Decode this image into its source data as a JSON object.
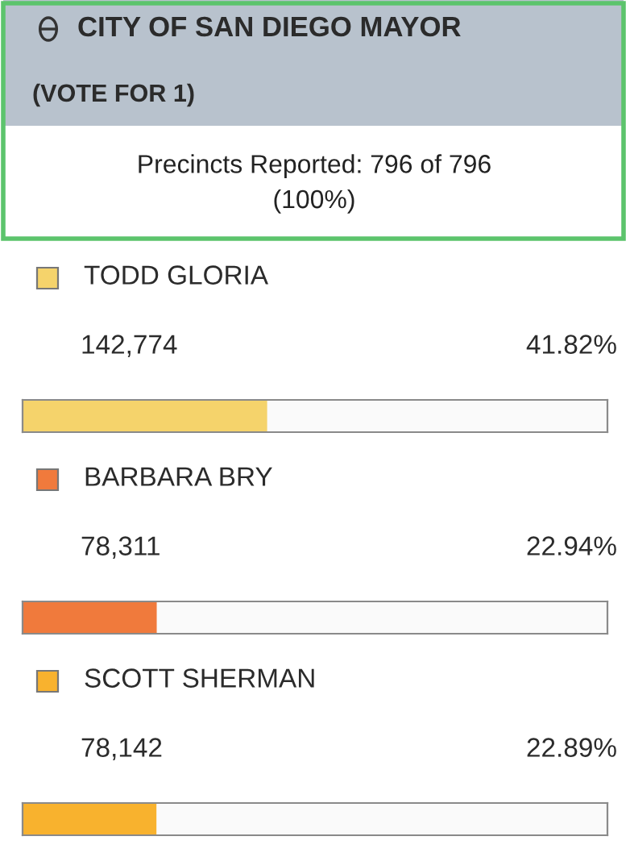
{
  "chart_data": {
    "type": "bar",
    "orientation": "horizontal",
    "title": "CITY OF SAN DIEGO MAYOR",
    "subtitle": "(VOTE FOR 1)",
    "annotations": [
      "Precincts Reported: 796 of 796\n(100%)",
      "142,774",
      "78,311",
      "78,142"
    ],
    "categories": [
      "TODD GLORIA",
      "BARBARA BRY",
      "SCOTT SHERMAN"
    ],
    "values": [
      41.82,
      22.94,
      22.89
    ],
    "colors": [
      "#f5d36b",
      "#f07a3c",
      "#f8b22e"
    ],
    "value_labels": [
      "41.82%",
      "22.94%",
      "22.89%"
    ],
    "xlim": [
      0,
      100
    ],
    "tick_labels": false
  }
}
